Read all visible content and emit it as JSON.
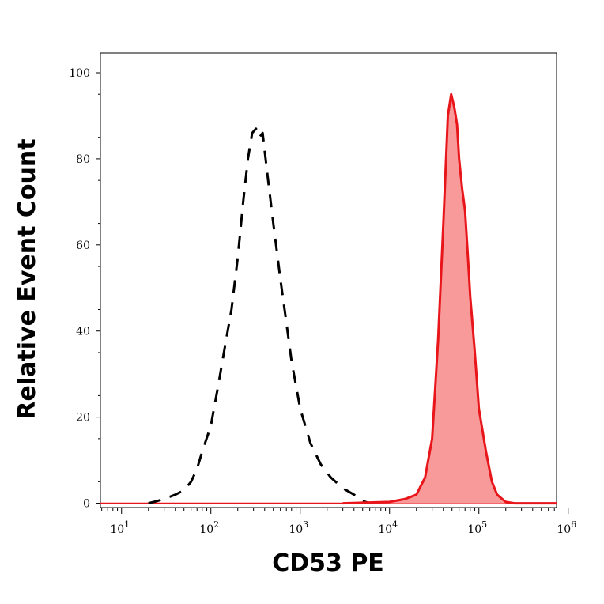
{
  "chart_data": {
    "type": "area",
    "xlabel": "CD53 PE",
    "ylabel": "Relative Event Count",
    "x_scale": "log10",
    "xlim": [
      5,
      1200000
    ],
    "ylim": [
      -1,
      105
    ],
    "y_ticks": [
      {
        "value": 0,
        "label": "0"
      },
      {
        "value": 20,
        "label": "20"
      },
      {
        "value": 40,
        "label": "40"
      },
      {
        "value": 60,
        "label": "60"
      },
      {
        "value": 80,
        "label": "80"
      },
      {
        "value": 100,
        "label": "100"
      }
    ],
    "x_ticks": [
      {
        "value": 10,
        "base": "10",
        "exp": "1"
      },
      {
        "value": 100,
        "base": "10",
        "exp": "2"
      },
      {
        "value": 1000,
        "base": "10",
        "exp": "3"
      },
      {
        "value": 10000,
        "base": "10",
        "exp": "4"
      },
      {
        "value": 100000,
        "base": "10",
        "exp": "5"
      },
      {
        "value": 1000000,
        "base": "10",
        "exp": "6"
      }
    ],
    "grid": false,
    "series": [
      {
        "style": "dashed-outline",
        "color": "#000000",
        "points": [
          [
            20,
            0
          ],
          [
            25,
            0.5
          ],
          [
            30,
            1
          ],
          [
            40,
            2
          ],
          [
            50,
            3
          ],
          [
            60,
            5
          ],
          [
            70,
            8
          ],
          [
            80,
            12
          ],
          [
            100,
            18
          ],
          [
            120,
            27
          ],
          [
            140,
            35
          ],
          [
            170,
            45
          ],
          [
            200,
            57
          ],
          [
            230,
            70
          ],
          [
            260,
            80
          ],
          [
            290,
            86
          ],
          [
            320,
            87
          ],
          [
            350,
            85
          ],
          [
            380,
            86
          ],
          [
            420,
            78
          ],
          [
            500,
            65
          ],
          [
            600,
            52
          ],
          [
            700,
            42
          ],
          [
            800,
            33
          ],
          [
            1000,
            22
          ],
          [
            1300,
            14
          ],
          [
            1700,
            9
          ],
          [
            2200,
            6
          ],
          [
            3000,
            3.5
          ],
          [
            4000,
            2
          ],
          [
            5000,
            0.5
          ],
          [
            6000,
            0
          ]
        ]
      },
      {
        "style": "filled",
        "color": "#e8161a",
        "fill": "#f99a9a",
        "points": [
          [
            3000,
            0
          ],
          [
            10000,
            0.3
          ],
          [
            15000,
            1
          ],
          [
            20000,
            2
          ],
          [
            25000,
            6
          ],
          [
            30000,
            15
          ],
          [
            35000,
            38
          ],
          [
            40000,
            65
          ],
          [
            45000,
            90
          ],
          [
            49000,
            95
          ],
          [
            53000,
            92
          ],
          [
            57000,
            88
          ],
          [
            60000,
            80
          ],
          [
            65000,
            73
          ],
          [
            70000,
            68
          ],
          [
            75000,
            58
          ],
          [
            80000,
            48
          ],
          [
            90000,
            35
          ],
          [
            100000,
            22
          ],
          [
            120000,
            12
          ],
          [
            140000,
            5
          ],
          [
            160000,
            2
          ],
          [
            200000,
            0.3
          ],
          [
            250000,
            0
          ],
          [
            1200000,
            0
          ]
        ]
      }
    ]
  }
}
